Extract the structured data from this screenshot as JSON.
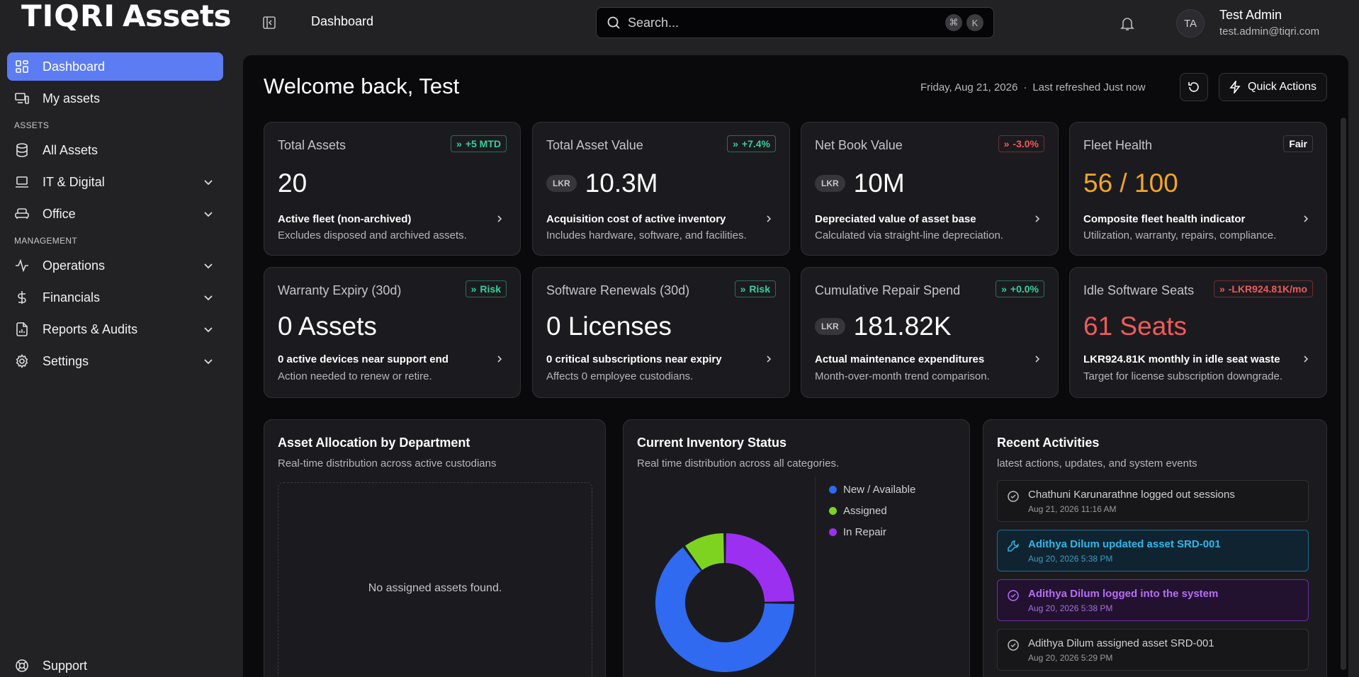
{
  "app": {
    "brand": "TIQRI",
    "name": "Assets"
  },
  "sidebar": {
    "items": [
      {
        "label": "Dashboard"
      },
      {
        "label": "My assets"
      }
    ],
    "sections": {
      "assets": "ASSETS",
      "management": "MANAGEMENT"
    },
    "assets_items": [
      {
        "label": "All Assets"
      },
      {
        "label": "IT & Digital"
      },
      {
        "label": "Office"
      }
    ],
    "management_items": [
      {
        "label": "Operations"
      },
      {
        "label": "Financials"
      },
      {
        "label": "Reports & Audits"
      },
      {
        "label": "Settings"
      }
    ],
    "support": "Support"
  },
  "header": {
    "title": "Dashboard",
    "search_placeholder": "Search...",
    "shortcut_keys": [
      "⌘",
      "K"
    ],
    "user": {
      "initials": "TA",
      "name": "Test Admin",
      "email": "test.admin@tiqri.com"
    }
  },
  "main": {
    "welcome": "Welcome back, Test",
    "date": "Friday, Aug 21, 2026",
    "refreshed": "Last refreshed Just now",
    "quick_actions": "Quick Actions",
    "currency": "LKR"
  },
  "kpis": [
    {
      "title": "Total Assets",
      "badge": "+5 MTD",
      "value": "20",
      "sub": "Active fleet (non-archived)",
      "desc": "Excludes disposed and archived assets."
    },
    {
      "title": "Total Asset Value",
      "badge": "+7.4%",
      "value": "10.3M",
      "sub": "Acquisition cost of active inventory",
      "desc": "Includes hardware, software, and facilities."
    },
    {
      "title": "Net Book Value",
      "badge": "-3.0%",
      "value": "10M",
      "sub": "Depreciated value of asset base",
      "desc": "Calculated via straight-line depreciation."
    },
    {
      "title": "Fleet Health",
      "badge": "Fair",
      "value": "56 / 100",
      "sub": "Composite fleet health indicator",
      "desc": "Utilization, warranty, repairs, compliance."
    },
    {
      "title": "Warranty Expiry (30d)",
      "badge": "Risk",
      "value": "0 Assets",
      "sub": "0 active devices near support end",
      "desc": "Action needed to renew or retire."
    },
    {
      "title": "Software Renewals (30d)",
      "badge": "Risk",
      "value": "0 Licenses",
      "sub": "0 critical subscriptions near expiry",
      "desc": "Affects 0 employee custodians."
    },
    {
      "title": "Cumulative Repair Spend",
      "badge": "+0.0%",
      "value": "181.82K",
      "sub": "Actual maintenance expenditures",
      "desc": "Month-over-month trend comparison."
    },
    {
      "title": "Idle Software Seats",
      "badge": "-LKR924.81K/mo",
      "value": "61 Seats",
      "sub": "LKR924.81K monthly in idle seat waste",
      "desc": "Target for license subscription downgrade."
    }
  ],
  "allocation": {
    "title": "Asset Allocation by Department",
    "desc": "Real-time distribution across active custodians",
    "empty": "No assigned assets found."
  },
  "inventory": {
    "title": "Current Inventory Status",
    "desc": "Real time distribution across all categories."
  },
  "chart_data": {
    "type": "pie",
    "categories": [
      "New / Available",
      "Assigned",
      "In Repair"
    ],
    "values": [
      65,
      10,
      25
    ],
    "colors": [
      "#2f6af0",
      "#7ed321",
      "#9b30f0"
    ],
    "donut": true,
    "legend": "right"
  },
  "activities": {
    "title": "Recent Activities",
    "desc": "latest actions, updates, and system events",
    "items": [
      {
        "text": "Chathuni Karunarathne logged out sessions",
        "time": "Aug 21, 2026 11:16 AM"
      },
      {
        "text": "Adithya Dilum updated asset SRD-001",
        "time": "Aug 20, 2026 5:38 PM"
      },
      {
        "text": "Adithya Dilum logged into the system",
        "time": "Aug 20, 2026 5:38 PM"
      },
      {
        "text": "Adithya Dilum assigned asset SRD-001",
        "time": "Aug 20, 2026 5:29 PM"
      }
    ]
  }
}
